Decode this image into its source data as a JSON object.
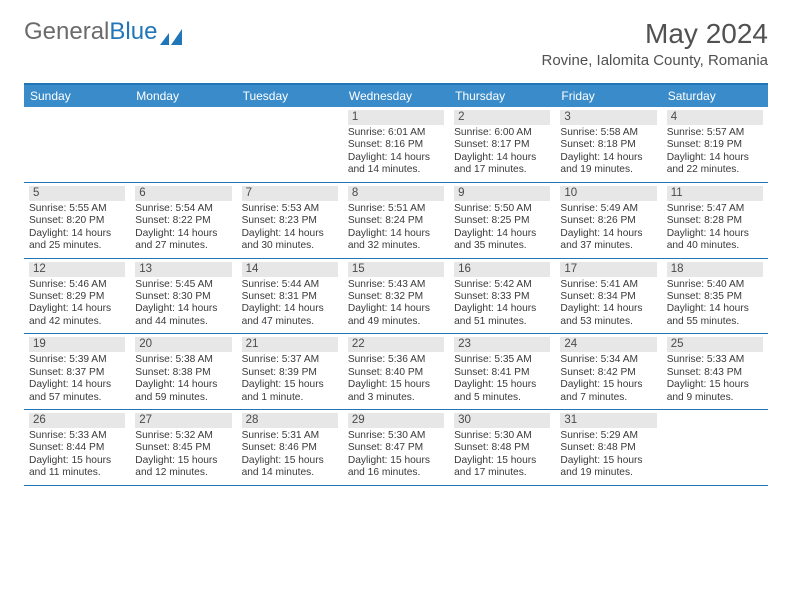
{
  "logo": {
    "text_gray": "General",
    "text_blue": "Blue"
  },
  "title": {
    "month": "May 2024",
    "location": "Rovine, Ialomita County, Romania"
  },
  "colors": {
    "brand_blue": "#2176b8",
    "header_blue": "#3a8bc9",
    "logo_gray": "#6b6b6b",
    "title_gray": "#515151",
    "band_gray": "#e7e7e8",
    "body_text": "#3a3a3a",
    "white": "#ffffff"
  },
  "typography": {
    "title_fontsize": 28,
    "location_fontsize": 15,
    "weekday_fontsize": 12,
    "body_fontsize": 10.2
  },
  "weekdays": [
    "Sunday",
    "Monday",
    "Tuesday",
    "Wednesday",
    "Thursday",
    "Friday",
    "Saturday"
  ],
  "weeks": [
    [
      {
        "day": ""
      },
      {
        "day": ""
      },
      {
        "day": ""
      },
      {
        "day": "1",
        "sunrise": "Sunrise: 6:01 AM",
        "sunset": "Sunset: 8:16 PM",
        "dl1": "Daylight: 14 hours",
        "dl2": "and 14 minutes."
      },
      {
        "day": "2",
        "sunrise": "Sunrise: 6:00 AM",
        "sunset": "Sunset: 8:17 PM",
        "dl1": "Daylight: 14 hours",
        "dl2": "and 17 minutes."
      },
      {
        "day": "3",
        "sunrise": "Sunrise: 5:58 AM",
        "sunset": "Sunset: 8:18 PM",
        "dl1": "Daylight: 14 hours",
        "dl2": "and 19 minutes."
      },
      {
        "day": "4",
        "sunrise": "Sunrise: 5:57 AM",
        "sunset": "Sunset: 8:19 PM",
        "dl1": "Daylight: 14 hours",
        "dl2": "and 22 minutes."
      }
    ],
    [
      {
        "day": "5",
        "sunrise": "Sunrise: 5:55 AM",
        "sunset": "Sunset: 8:20 PM",
        "dl1": "Daylight: 14 hours",
        "dl2": "and 25 minutes."
      },
      {
        "day": "6",
        "sunrise": "Sunrise: 5:54 AM",
        "sunset": "Sunset: 8:22 PM",
        "dl1": "Daylight: 14 hours",
        "dl2": "and 27 minutes."
      },
      {
        "day": "7",
        "sunrise": "Sunrise: 5:53 AM",
        "sunset": "Sunset: 8:23 PM",
        "dl1": "Daylight: 14 hours",
        "dl2": "and 30 minutes."
      },
      {
        "day": "8",
        "sunrise": "Sunrise: 5:51 AM",
        "sunset": "Sunset: 8:24 PM",
        "dl1": "Daylight: 14 hours",
        "dl2": "and 32 minutes."
      },
      {
        "day": "9",
        "sunrise": "Sunrise: 5:50 AM",
        "sunset": "Sunset: 8:25 PM",
        "dl1": "Daylight: 14 hours",
        "dl2": "and 35 minutes."
      },
      {
        "day": "10",
        "sunrise": "Sunrise: 5:49 AM",
        "sunset": "Sunset: 8:26 PM",
        "dl1": "Daylight: 14 hours",
        "dl2": "and 37 minutes."
      },
      {
        "day": "11",
        "sunrise": "Sunrise: 5:47 AM",
        "sunset": "Sunset: 8:28 PM",
        "dl1": "Daylight: 14 hours",
        "dl2": "and 40 minutes."
      }
    ],
    [
      {
        "day": "12",
        "sunrise": "Sunrise: 5:46 AM",
        "sunset": "Sunset: 8:29 PM",
        "dl1": "Daylight: 14 hours",
        "dl2": "and 42 minutes."
      },
      {
        "day": "13",
        "sunrise": "Sunrise: 5:45 AM",
        "sunset": "Sunset: 8:30 PM",
        "dl1": "Daylight: 14 hours",
        "dl2": "and 44 minutes."
      },
      {
        "day": "14",
        "sunrise": "Sunrise: 5:44 AM",
        "sunset": "Sunset: 8:31 PM",
        "dl1": "Daylight: 14 hours",
        "dl2": "and 47 minutes."
      },
      {
        "day": "15",
        "sunrise": "Sunrise: 5:43 AM",
        "sunset": "Sunset: 8:32 PM",
        "dl1": "Daylight: 14 hours",
        "dl2": "and 49 minutes."
      },
      {
        "day": "16",
        "sunrise": "Sunrise: 5:42 AM",
        "sunset": "Sunset: 8:33 PM",
        "dl1": "Daylight: 14 hours",
        "dl2": "and 51 minutes."
      },
      {
        "day": "17",
        "sunrise": "Sunrise: 5:41 AM",
        "sunset": "Sunset: 8:34 PM",
        "dl1": "Daylight: 14 hours",
        "dl2": "and 53 minutes."
      },
      {
        "day": "18",
        "sunrise": "Sunrise: 5:40 AM",
        "sunset": "Sunset: 8:35 PM",
        "dl1": "Daylight: 14 hours",
        "dl2": "and 55 minutes."
      }
    ],
    [
      {
        "day": "19",
        "sunrise": "Sunrise: 5:39 AM",
        "sunset": "Sunset: 8:37 PM",
        "dl1": "Daylight: 14 hours",
        "dl2": "and 57 minutes."
      },
      {
        "day": "20",
        "sunrise": "Sunrise: 5:38 AM",
        "sunset": "Sunset: 8:38 PM",
        "dl1": "Daylight: 14 hours",
        "dl2": "and 59 minutes."
      },
      {
        "day": "21",
        "sunrise": "Sunrise: 5:37 AM",
        "sunset": "Sunset: 8:39 PM",
        "dl1": "Daylight: 15 hours",
        "dl2": "and 1 minute."
      },
      {
        "day": "22",
        "sunrise": "Sunrise: 5:36 AM",
        "sunset": "Sunset: 8:40 PM",
        "dl1": "Daylight: 15 hours",
        "dl2": "and 3 minutes."
      },
      {
        "day": "23",
        "sunrise": "Sunrise: 5:35 AM",
        "sunset": "Sunset: 8:41 PM",
        "dl1": "Daylight: 15 hours",
        "dl2": "and 5 minutes."
      },
      {
        "day": "24",
        "sunrise": "Sunrise: 5:34 AM",
        "sunset": "Sunset: 8:42 PM",
        "dl1": "Daylight: 15 hours",
        "dl2": "and 7 minutes."
      },
      {
        "day": "25",
        "sunrise": "Sunrise: 5:33 AM",
        "sunset": "Sunset: 8:43 PM",
        "dl1": "Daylight: 15 hours",
        "dl2": "and 9 minutes."
      }
    ],
    [
      {
        "day": "26",
        "sunrise": "Sunrise: 5:33 AM",
        "sunset": "Sunset: 8:44 PM",
        "dl1": "Daylight: 15 hours",
        "dl2": "and 11 minutes."
      },
      {
        "day": "27",
        "sunrise": "Sunrise: 5:32 AM",
        "sunset": "Sunset: 8:45 PM",
        "dl1": "Daylight: 15 hours",
        "dl2": "and 12 minutes."
      },
      {
        "day": "28",
        "sunrise": "Sunrise: 5:31 AM",
        "sunset": "Sunset: 8:46 PM",
        "dl1": "Daylight: 15 hours",
        "dl2": "and 14 minutes."
      },
      {
        "day": "29",
        "sunrise": "Sunrise: 5:30 AM",
        "sunset": "Sunset: 8:47 PM",
        "dl1": "Daylight: 15 hours",
        "dl2": "and 16 minutes."
      },
      {
        "day": "30",
        "sunrise": "Sunrise: 5:30 AM",
        "sunset": "Sunset: 8:48 PM",
        "dl1": "Daylight: 15 hours",
        "dl2": "and 17 minutes."
      },
      {
        "day": "31",
        "sunrise": "Sunrise: 5:29 AM",
        "sunset": "Sunset: 8:48 PM",
        "dl1": "Daylight: 15 hours",
        "dl2": "and 19 minutes."
      },
      {
        "day": ""
      }
    ]
  ]
}
